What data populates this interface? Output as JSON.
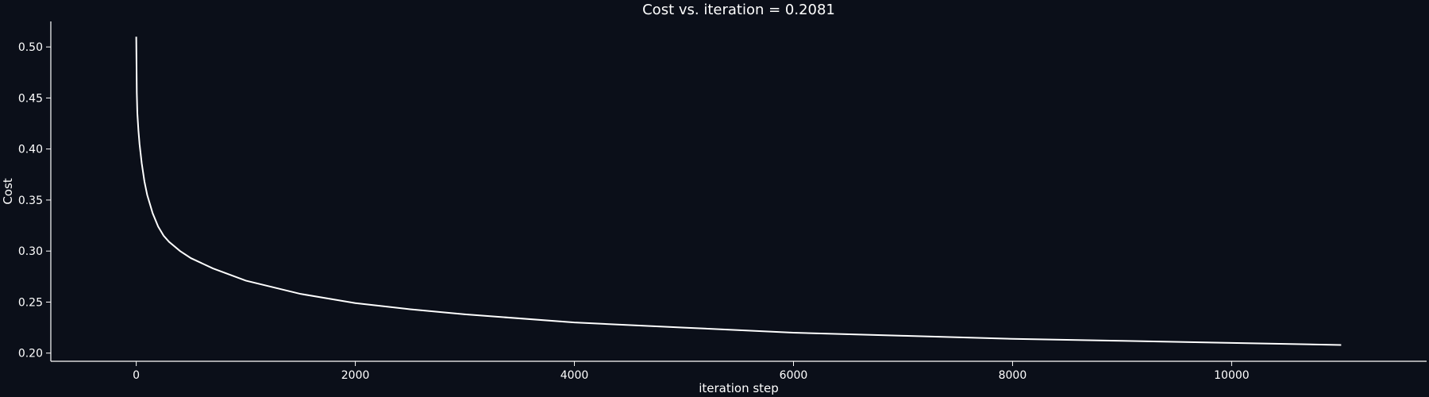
{
  "chart_data": {
    "type": "line",
    "title": "Cost vs. iteration = 0.2081",
    "xlabel": "iteration step",
    "ylabel": "Cost",
    "xlim": [
      -780,
      11780
    ],
    "ylim": [
      0.192,
      0.525
    ],
    "xticks": [
      0,
      2000,
      4000,
      6000,
      8000,
      10000
    ],
    "yticks": [
      0.2,
      0.25,
      0.3,
      0.35,
      0.4,
      0.45,
      0.5
    ],
    "ytick_format_decimals": 2,
    "grid": false,
    "series": [
      {
        "color": "#ffffff",
        "x": [
          0,
          5,
          10,
          20,
          30,
          50,
          75,
          100,
          150,
          200,
          250,
          300,
          400,
          500,
          700,
          1000,
          1500,
          2000,
          2500,
          3000,
          4000,
          5000,
          6000,
          7000,
          8000,
          9000,
          10000,
          11000
        ],
        "y": [
          0.51,
          0.455,
          0.435,
          0.418,
          0.405,
          0.386,
          0.368,
          0.355,
          0.337,
          0.324,
          0.315,
          0.309,
          0.3,
          0.293,
          0.283,
          0.271,
          0.258,
          0.249,
          0.243,
          0.238,
          0.23,
          0.225,
          0.22,
          0.217,
          0.214,
          0.212,
          0.21,
          0.208
        ]
      }
    ]
  }
}
